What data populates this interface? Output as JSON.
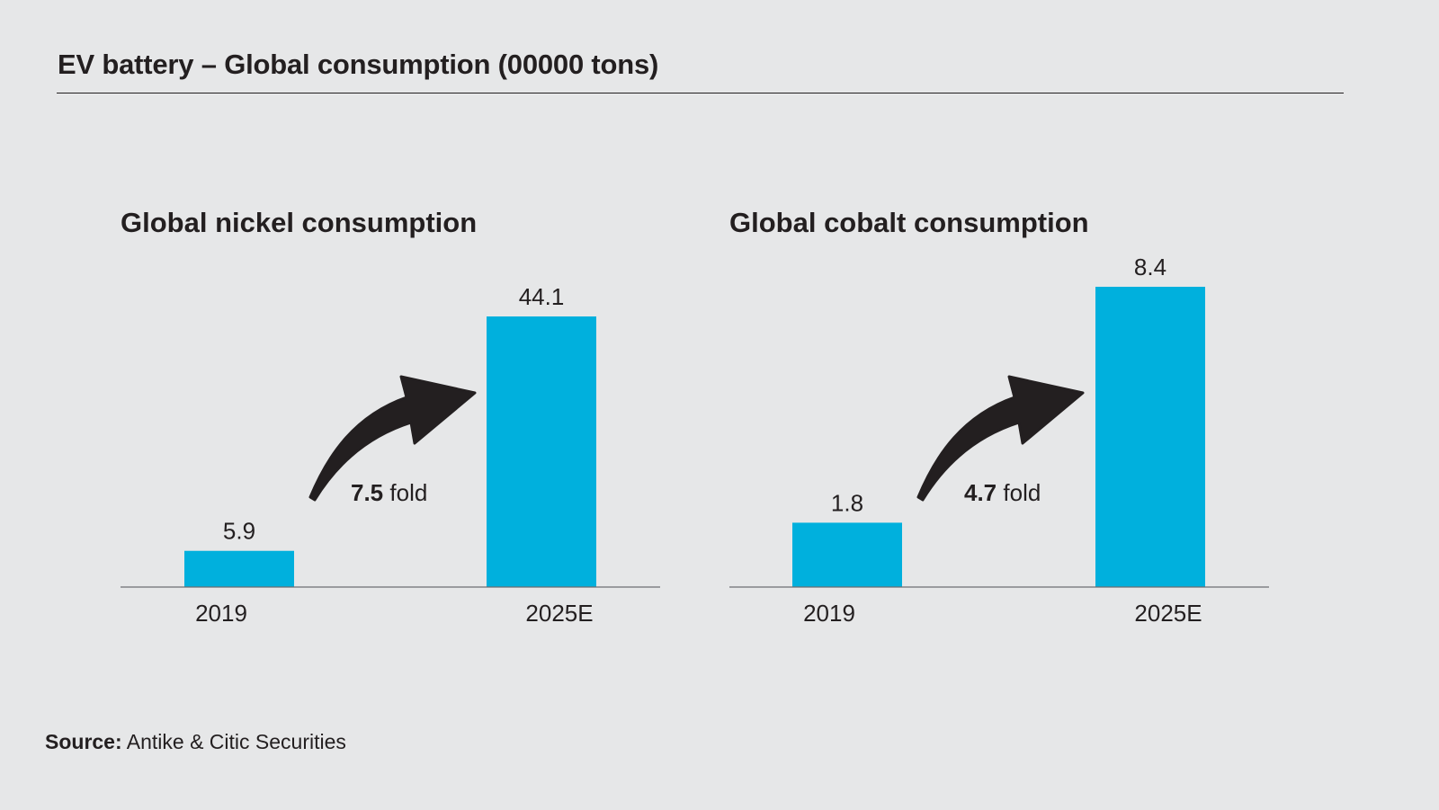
{
  "header": {
    "title": "EV battery – Global consumption (00000 tons)"
  },
  "footer": {
    "source_label": "Source:",
    "source_text": "Antike & Citic Securities"
  },
  "colors": {
    "bar": "#00b0dd",
    "arrow": "#231f20",
    "background": "#e6e7e8"
  },
  "chart_data": [
    {
      "type": "bar",
      "title": "Global nickel consumption",
      "categories": [
        "2019",
        "2025E"
      ],
      "values": [
        5.9,
        44.1
      ],
      "value_labels": [
        "5.9",
        "44.1"
      ],
      "annotation": {
        "value": "7.5",
        "suffix": " fold",
        "icon": "curved-arrow-up-right"
      },
      "xlabel": "",
      "ylabel": "",
      "grid": false
    },
    {
      "type": "bar",
      "title": "Global cobalt consumption",
      "categories": [
        "2019",
        "2025E"
      ],
      "values": [
        1.8,
        8.4
      ],
      "value_labels": [
        "1.8",
        "8.4"
      ],
      "annotation": {
        "value": "4.7",
        "suffix": " fold",
        "icon": "curved-arrow-up-right"
      },
      "xlabel": "",
      "ylabel": "",
      "grid": false
    }
  ]
}
